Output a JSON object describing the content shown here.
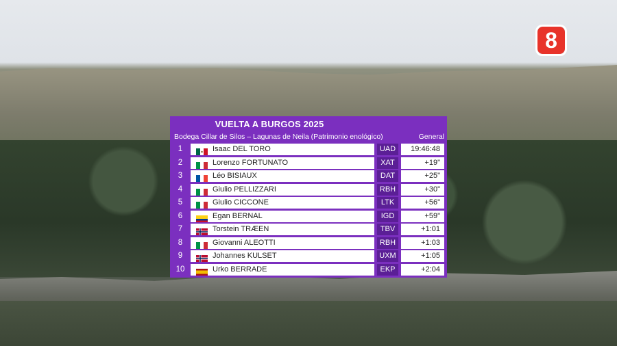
{
  "broadcast": {
    "channel_logo": "8",
    "colors": {
      "board": "#7b2fbf",
      "team_box": "#5b1f96",
      "logo": "#e8332a"
    }
  },
  "standings": {
    "title": "VUELTA A BURGOS 2025",
    "stage": "Bodega Cillar de Silos – Lagunas de Neila (Patrimonio enológico)",
    "classification": "General",
    "rows": [
      {
        "pos": "1",
        "flag": "mexico-flag",
        "name": "Isaac DEL TORO",
        "team": "UAD",
        "time": "19:46:48",
        "leader_jersey": "purple-jersey-icon"
      },
      {
        "pos": "2",
        "flag": "italy-flag",
        "name": "Lorenzo FORTUNATO",
        "team": "XAT",
        "time": "+19\""
      },
      {
        "pos": "3",
        "flag": "france-flag",
        "name": "Léo BISIAUX",
        "team": "DAT",
        "time": "+25\""
      },
      {
        "pos": "4",
        "flag": "italy-flag",
        "name": "Giulio PELLIZZARI",
        "team": "RBH",
        "time": "+30\""
      },
      {
        "pos": "5",
        "flag": "italy-flag",
        "name": "Giulio CICCONE",
        "team": "LTK",
        "time": "+56\""
      },
      {
        "pos": "6",
        "flag": "colombia-flag",
        "name": "Egan BERNAL",
        "team": "IGD",
        "time": "+59\""
      },
      {
        "pos": "7",
        "flag": "norway-flag",
        "name": "Torstein TRÆEN",
        "team": "TBV",
        "time": "+1:01"
      },
      {
        "pos": "8",
        "flag": "italy-flag",
        "name": "Giovanni ALEOTTI",
        "team": "RBH",
        "time": "+1:03"
      },
      {
        "pos": "9",
        "flag": "norway-flag",
        "name": "Johannes KULSET",
        "team": "UXM",
        "time": "+1:05"
      },
      {
        "pos": "10",
        "flag": "spain-flag",
        "name": "Urko BERRADE",
        "team": "EKP",
        "time": "+2:04"
      }
    ]
  }
}
